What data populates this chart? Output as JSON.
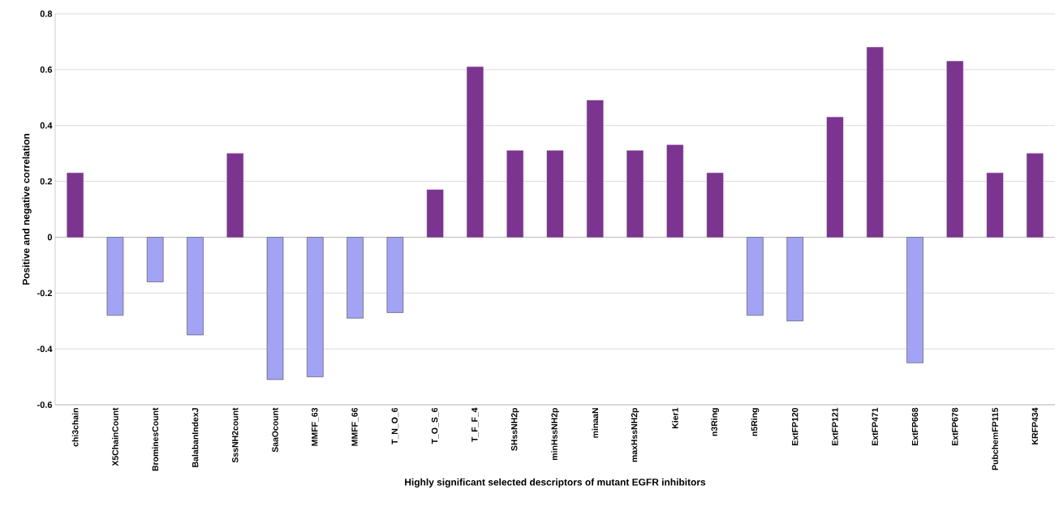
{
  "chart_data": {
    "type": "bar",
    "xlabel": "Highly significant selected descriptors of mutant EGFR inhibitors",
    "ylabel": "Positive and negative correlation",
    "categories": [
      "chi3chain",
      "X5ChainCount",
      "BrominesCount",
      "BalabanIndexJ",
      "SssNH2count",
      "SaaOcount",
      "MMFF_63",
      "MMFF_66",
      "T_N_O_6",
      "T_O_S_6",
      "T_F_F_4",
      "SHssNH2p",
      "minHssNH2p",
      "minaaN",
      "maxHssNH2p",
      "Kier1",
      "n3Ring",
      "n5Ring",
      "ExtFP120",
      "ExtFP121",
      "ExtFP471",
      "ExtFP668",
      "ExtFP678",
      "PubchemFP115",
      "KRFP434"
    ],
    "values": [
      0.23,
      -0.28,
      -0.16,
      -0.35,
      0.3,
      -0.51,
      -0.5,
      -0.29,
      -0.27,
      0.17,
      0.61,
      0.31,
      0.31,
      0.49,
      0.31,
      0.33,
      0.23,
      -0.28,
      -0.3,
      0.43,
      0.68,
      -0.45,
      0.63,
      0.23,
      0.3
    ],
    "colors": [
      "#7b3590",
      "#a3a3f5",
      "#a3a3f5",
      "#a3a3f5",
      "#7b3590",
      "#a3a3f5",
      "#a3a3f5",
      "#a3a3f5",
      "#a3a3f5",
      "#7b3590",
      "#7b3590",
      "#7b3590",
      "#7b3590",
      "#7b3590",
      "#7b3590",
      "#7b3590",
      "#7b3590",
      "#a3a3f5",
      "#a3a3f5",
      "#7b3590",
      "#7b3590",
      "#a3a3f5",
      "#7b3590",
      "#7b3590",
      "#7b3590"
    ],
    "ylim": [
      -0.6,
      0.8
    ],
    "yticks": [
      {
        "value": -0.6,
        "label": "-0.6"
      },
      {
        "value": -0.4,
        "label": "-0.4"
      },
      {
        "value": -0.2,
        "label": "-0.2"
      },
      {
        "value": 0,
        "label": "0"
      },
      {
        "value": 0.2,
        "label": "0.2"
      },
      {
        "value": 0.4,
        "label": "0.4"
      },
      {
        "value": 0.6,
        "label": "0.6"
      },
      {
        "value": 0.8,
        "label": "0.8"
      }
    ],
    "grid": "y"
  }
}
